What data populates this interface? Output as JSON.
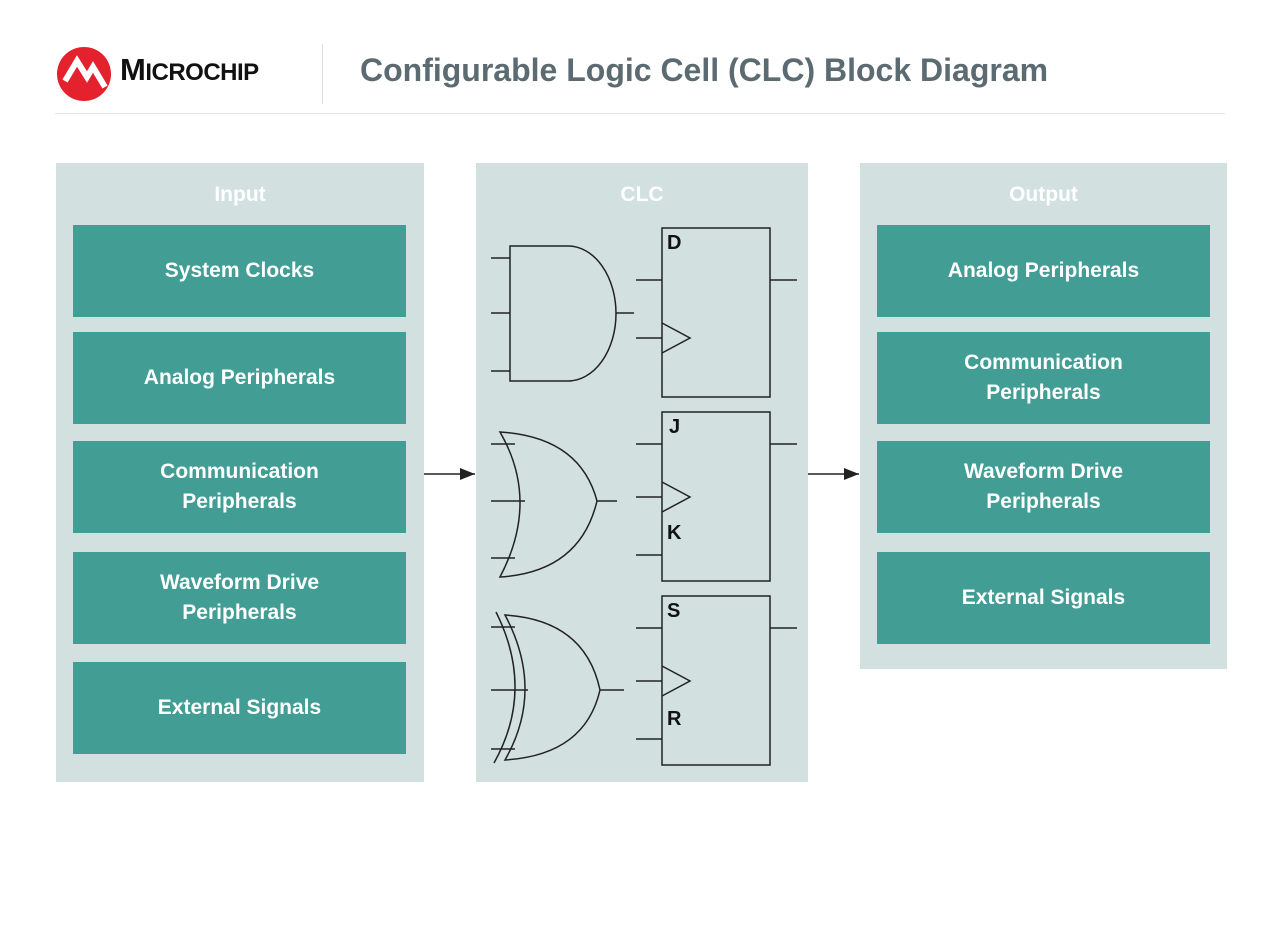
{
  "header": {
    "logo_text": "Microchip",
    "title": "Configurable Logic Cell (CLC) Block Diagram"
  },
  "colors": {
    "panel": "#d3e0e0",
    "box": "#429e94",
    "title": "#5b6b71",
    "logo_red": "#e3222d"
  },
  "input": {
    "title": "Input",
    "items": [
      "System Clocks",
      "Analog Peripherals",
      "Communication\nPeripherals",
      "Waveform Drive\nPeripherals",
      "External Signals"
    ]
  },
  "clc": {
    "title": "CLC",
    "flipflops": [
      {
        "labels": [
          "D"
        ]
      },
      {
        "labels": [
          "J",
          "K"
        ]
      },
      {
        "labels": [
          "S",
          "R"
        ]
      }
    ],
    "gates": [
      "and-gate",
      "or-gate",
      "xor-gate"
    ]
  },
  "output": {
    "title": "Output",
    "items": [
      "Analog Peripherals",
      "Communication\nPeripherals",
      "Waveform Drive\nPeripherals",
      "External Signals"
    ]
  }
}
